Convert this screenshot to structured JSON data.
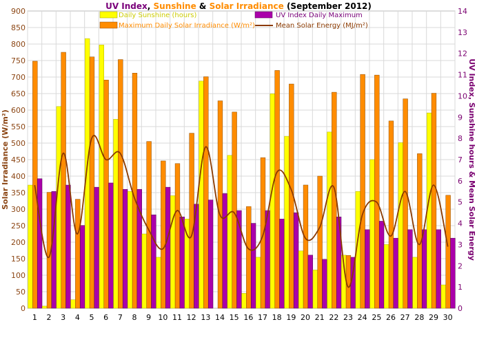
{
  "title": {
    "part1": "UV Index",
    "sep1": ", ",
    "part2": "Sunshine",
    "sep2": " & ",
    "part3": "Solar Irradiance",
    "part4": " (September 2012)",
    "color1": "#7a007a",
    "color2": "#ff8c00",
    "color3": "#ff8c00",
    "color4": "#000000"
  },
  "left_axis_title": "Solar Irradiance (W/m²)",
  "right_axis_title": "UV Index, Sunshine hours & Mean Solar Energy",
  "left_tick_labels": [
    "0",
    "50",
    "100",
    "150",
    "200",
    "250",
    "300",
    "350",
    "400",
    "450",
    "500",
    "550",
    "600",
    "650",
    "700",
    "750",
    "800",
    "850",
    "900"
  ],
  "right_tick_labels": [
    "0",
    "1",
    "2",
    "3",
    "4",
    "5",
    "6",
    "7",
    "8",
    "9",
    "10",
    "11",
    "12",
    "13",
    "14"
  ],
  "x_tick_labels": [
    "1",
    "2",
    "3",
    "4",
    "5",
    "6",
    "7",
    "8",
    "9",
    "10",
    "11",
    "12",
    "13",
    "14",
    "15",
    "16",
    "17",
    "18",
    "19",
    "20",
    "21",
    "22",
    "23",
    "24",
    "25",
    "26",
    "27",
    "28",
    "29",
    "30"
  ],
  "legend": {
    "sunshine": "Daily Sunshine (hours)",
    "irradiance": "Maximum Daily Solar Irradiance (W/m²)",
    "uv": "UV Index Daily Maximum",
    "energy": "Mean Solar Energy (MJ/m²)"
  },
  "colors": {
    "sunshine": "#ffff00",
    "irradiance": "#ff8c00",
    "uv": "#aa00aa",
    "energy": "#8b3a00",
    "left_axis": "#8b4513",
    "right_axis": "#7a0070",
    "grid": "#d9d9d9"
  },
  "chart_data": {
    "type": "bar",
    "title": "UV Index, Sunshine & Solar Irradiance (September 2012)",
    "categories": [
      "1",
      "2",
      "3",
      "4",
      "5",
      "6",
      "7",
      "8",
      "9",
      "10",
      "11",
      "12",
      "13",
      "14",
      "15",
      "16",
      "17",
      "18",
      "19",
      "20",
      "21",
      "22",
      "23",
      "24",
      "25",
      "26",
      "27",
      "28",
      "29",
      "30"
    ],
    "ylabel_left": "Solar Irradiance (W/m²)",
    "ylabel_right": "UV Index, Sunshine hours & Mean Solar Energy",
    "ylim_left": [
      0,
      900
    ],
    "ylim_right": [
      0,
      14
    ],
    "grid": true,
    "legend_position": "top",
    "series": [
      {
        "name": "Daily Sunshine (hours)",
        "axis": "right",
        "values": [
          5.8,
          0.1,
          9.5,
          0.4,
          12.7,
          12.4,
          8.9,
          5.5,
          3.5,
          2.4,
          5.3,
          4.2,
          10.7,
          0,
          7.2,
          0.7,
          2.4,
          10.1,
          8.1,
          2.7,
          1.8,
          8.3,
          2.5,
          5.5,
          7.0,
          3.0,
          7.8,
          2.4,
          9.2,
          1.1
        ]
      },
      {
        "name": "Maximum Daily Solar Irradiance (W/m²)",
        "axis": "left",
        "values": [
          748,
          351,
          775,
          330,
          761,
          691,
          753,
          712,
          505,
          446,
          438,
          530,
          701,
          628,
          594,
          308,
          456,
          720,
          679,
          373,
          400,
          654,
          160,
          708,
          706,
          567,
          634,
          468,
          651,
          342
        ]
      },
      {
        "name": "UV Index Daily Maximum",
        "axis": "right",
        "values": [
          6.1,
          5.5,
          5.8,
          3.9,
          5.7,
          5.9,
          5.6,
          5.6,
          4.4,
          5.7,
          4.3,
          4.9,
          5.1,
          5.4,
          4.6,
          4.0,
          4.6,
          4.2,
          4.5,
          2.5,
          2.3,
          4.3,
          2.4,
          3.7,
          4.1,
          3.3,
          3.7,
          3.7,
          3.7,
          3.3
        ]
      },
      {
        "name": "Mean Solar Energy (MJ/m²)",
        "axis": "right",
        "type": "line",
        "values": [
          5.8,
          2.4,
          7.3,
          3.5,
          8.0,
          7.0,
          7.3,
          5.2,
          3.7,
          2.8,
          4.6,
          3.4,
          7.6,
          4.4,
          4.5,
          2.8,
          3.4,
          6.4,
          5.6,
          3.3,
          3.8,
          5.7,
          1.0,
          4.4,
          5.0,
          3.4,
          5.5,
          3.0,
          5.8,
          2.9
        ]
      }
    ]
  }
}
